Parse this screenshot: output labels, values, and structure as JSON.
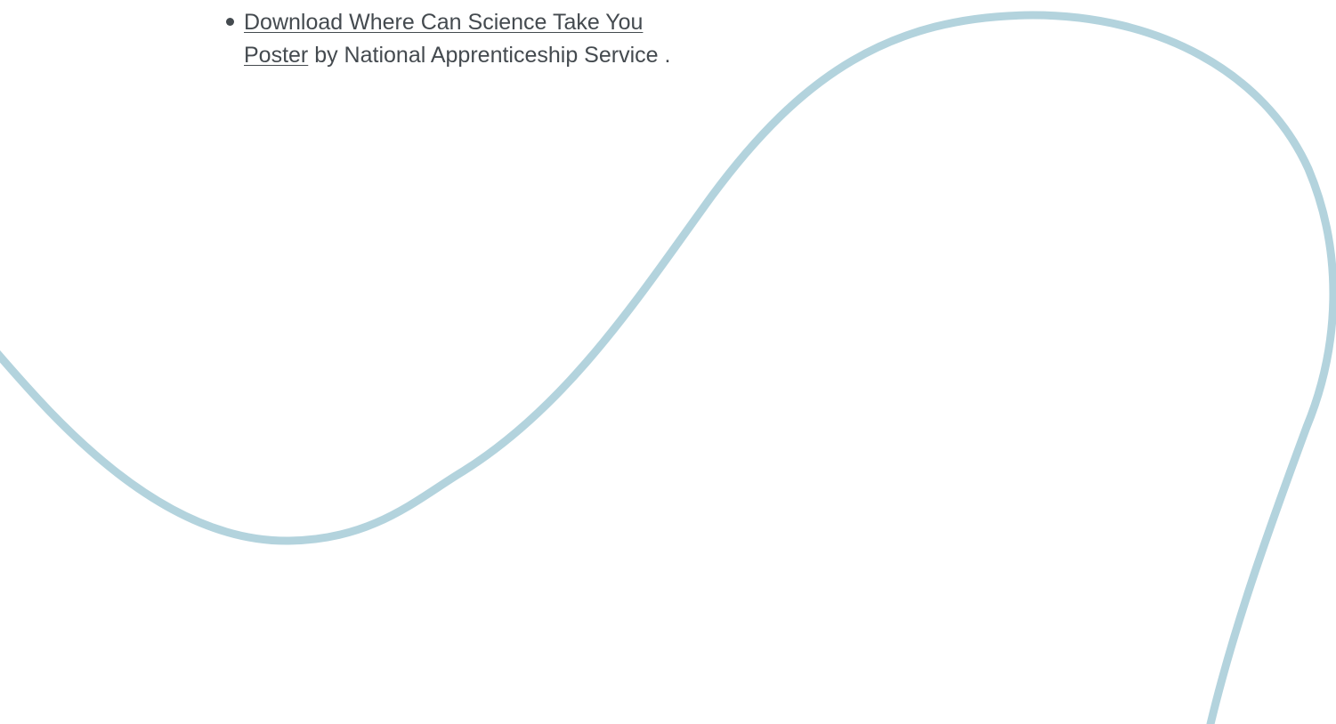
{
  "resources": {
    "items": [
      {
        "link_text_line1": "Download Where Can Science Take You",
        "link_text_line2": "Poster",
        "suffix": " by National Apprenticeship Service ."
      }
    ]
  },
  "colors": {
    "text": "#444a4f",
    "decorative_curve": "#b3d3dd",
    "background": "#ffffff"
  }
}
